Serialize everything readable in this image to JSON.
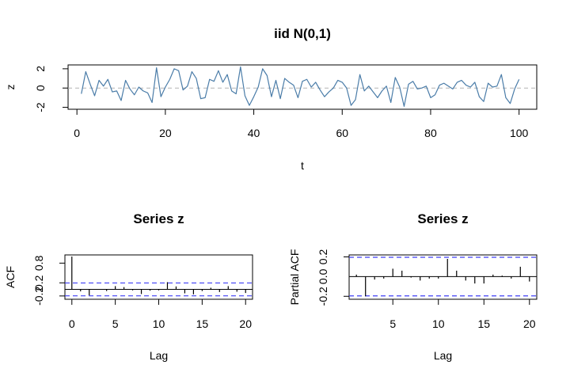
{
  "chart_data": [
    {
      "type": "line",
      "title": "iid N(0,1)",
      "xlabel": "t",
      "ylabel": "z",
      "xlim": [
        -2,
        104
      ],
      "ylim": [
        -2.2,
        2.4
      ],
      "xticks": [
        0,
        20,
        40,
        60,
        80,
        100
      ],
      "yticks": [
        -2,
        0,
        2
      ],
      "hline": 0,
      "colors": {
        "line": "#4a7ca8",
        "reference": "#b3b3b3"
      },
      "series": [
        {
          "x": [
            1,
            2,
            3,
            4,
            5,
            6,
            7,
            8,
            9,
            10,
            11,
            12,
            13,
            14,
            15,
            16,
            17,
            18,
            19,
            20,
            21,
            22,
            23,
            24,
            25,
            26,
            27,
            28,
            29,
            30,
            31,
            32,
            33,
            34,
            35,
            36,
            37,
            38,
            39,
            40,
            41,
            42,
            43,
            44,
            45,
            46,
            47,
            48,
            49,
            50,
            51,
            52,
            53,
            54,
            55,
            56,
            57,
            58,
            59,
            60,
            61,
            62,
            63,
            64,
            65,
            66,
            67,
            68,
            69,
            70,
            71,
            72,
            73,
            74,
            75,
            76,
            77,
            78,
            79,
            80,
            81,
            82,
            83,
            84,
            85,
            86,
            87,
            88,
            89,
            90,
            91,
            92,
            93,
            94,
            95,
            96,
            97,
            98,
            99,
            100
          ],
          "values": [
            -0.6,
            1.7,
            0.4,
            -0.8,
            0.8,
            0.2,
            0.9,
            -0.4,
            -0.3,
            -1.3,
            0.8,
            -0.1,
            -0.7,
            0.1,
            -0.3,
            -0.5,
            -1.5,
            2.1,
            -0.9,
            0.1,
            0.9,
            2.0,
            1.8,
            -0.2,
            0.2,
            1.7,
            1.0,
            -1.1,
            -1.0,
            0.9,
            0.7,
            1.8,
            0.6,
            1.4,
            -0.3,
            -0.6,
            2.2,
            -0.8,
            -1.8,
            -0.9,
            0.1,
            2.0,
            1.3,
            -0.9,
            0.8,
            -1.1,
            1.0,
            0.6,
            0.3,
            -1.0,
            0.7,
            0.9,
            0.1,
            0.6,
            -0.2,
            -0.9,
            -0.4,
            0.0,
            0.8,
            0.6,
            0.0,
            -1.8,
            -1.2,
            1.4,
            -0.3,
            0.2,
            -0.4,
            -1.0,
            -0.3,
            0.2,
            -1.5,
            1.1,
            0.1,
            -1.9,
            0.4,
            0.7,
            -0.1,
            0.0,
            0.2,
            -1.0,
            -0.7,
            0.3,
            0.5,
            0.2,
            -0.1,
            0.6,
            0.8,
            0.3,
            0.1,
            0.6,
            -0.9,
            -1.4,
            0.5,
            0.1,
            0.2,
            1.4,
            -1.0,
            -1.6,
            -0.1,
            0.9
          ]
        }
      ]
    },
    {
      "type": "bar",
      "title": "Series  z",
      "xlabel": "Lag",
      "ylabel": "ACF",
      "xlim": [
        -0.8,
        20.8
      ],
      "ylim": [
        -0.3,
        1.05
      ],
      "xticks": [
        0,
        5,
        10,
        15,
        20
      ],
      "yticks": [
        -0.2,
        0.2,
        0.8
      ],
      "ytick_labels": [
        "-0.2",
        "0.2",
        "0.8"
      ],
      "confidence_band": [
        -0.196,
        0.196
      ],
      "colors": {
        "bar": "#000000",
        "band": "#3f3ff5"
      },
      "x": [
        0,
        1,
        2,
        3,
        4,
        5,
        6,
        7,
        8,
        9,
        10,
        11,
        12,
        13,
        14,
        15,
        16,
        17,
        18,
        19,
        20
      ],
      "values": [
        1.0,
        -0.06,
        -0.18,
        0.0,
        -0.05,
        0.1,
        0.07,
        -0.03,
        -0.14,
        -0.04,
        -0.03,
        0.22,
        0.09,
        -0.12,
        -0.15,
        -0.05,
        0.05,
        -0.08,
        0.1,
        -0.07,
        -0.11
      ]
    },
    {
      "type": "bar",
      "title": "Series  z",
      "xlabel": "Lag",
      "ylabel": "Partial ACF",
      "xlim": [
        0.2,
        20.8
      ],
      "ylim": [
        -0.23,
        0.22
      ],
      "xticks": [
        5,
        10,
        15,
        20
      ],
      "yticks": [
        -0.2,
        0.2
      ],
      "ytick_labels": [
        "-0.2",
        "0.2"
      ],
      "extra_ytick_labels": [
        {
          "value": 0.0,
          "label": "0.0"
        }
      ],
      "confidence_band": [
        -0.196,
        0.196
      ],
      "colors": {
        "bar": "#000000",
        "band": "#3f3ff5"
      },
      "x": [
        1,
        2,
        3,
        4,
        5,
        6,
        7,
        8,
        9,
        10,
        11,
        12,
        13,
        14,
        15,
        16,
        17,
        18,
        19,
        20
      ],
      "values": [
        0.02,
        -0.2,
        -0.03,
        -0.02,
        0.08,
        0.06,
        -0.01,
        -0.04,
        -0.02,
        -0.02,
        0.18,
        0.06,
        -0.04,
        -0.07,
        -0.07,
        0.02,
        0.01,
        -0.02,
        0.1,
        -0.05
      ]
    }
  ]
}
